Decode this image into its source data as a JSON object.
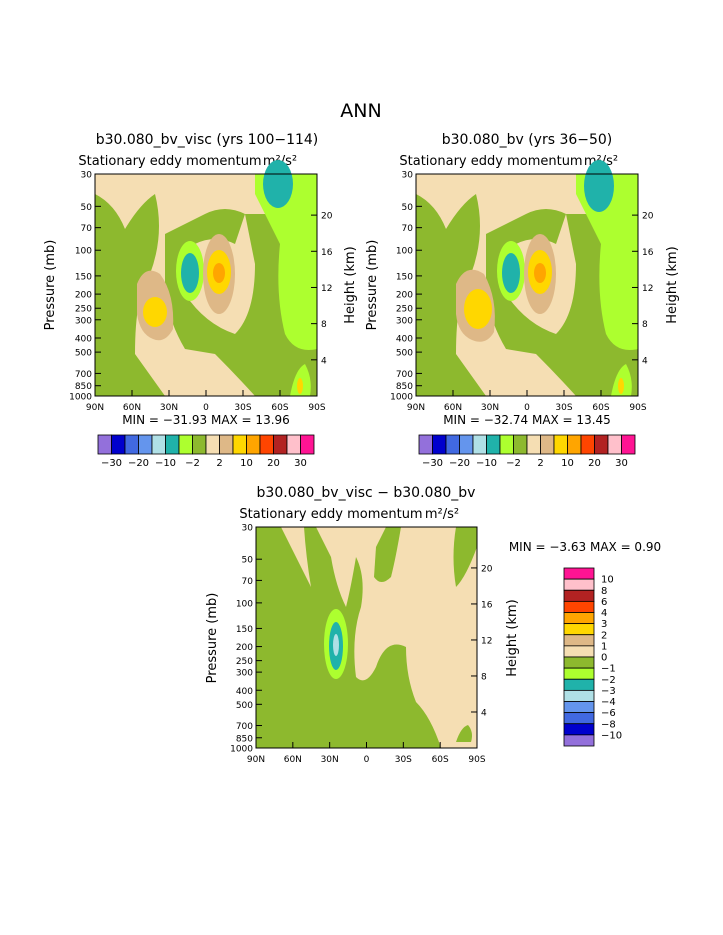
{
  "page_title": "ANN",
  "panels": [
    {
      "id": "p1",
      "title": "b30.080_bv_visc (yrs 100−114)",
      "subtitle": "Stationary eddy momentum",
      "units": "m²/s²",
      "stats": "MIN = −31.93   MAX =   13.96"
    },
    {
      "id": "p2",
      "title": "b30.080_bv (yrs 36−50)",
      "subtitle": "Stationary eddy momentum",
      "units": "m²/s²",
      "stats": "MIN = −32.74   MAX =   13.45"
    },
    {
      "id": "p3",
      "title": "b30.080_bv_visc − b30.080_bv",
      "subtitle": "Stationary eddy momentum",
      "units": "m²/s²",
      "stats": "MIN =   −3.63   MAX =    0.90"
    }
  ],
  "axes": {
    "ylabel_left": "Pressure (mb)",
    "ylabel_right": "Height (km)",
    "pressure_ticks": [
      "30",
      "50",
      "70",
      "100",
      "150",
      "200",
      "250",
      "300",
      "400",
      "500",
      "700",
      "850",
      "1000"
    ],
    "height_ticks": [
      "4",
      "8",
      "12",
      "16",
      "20"
    ],
    "lat_ticks": [
      "90N",
      "60N",
      "30N",
      "0",
      "30S",
      "60S",
      "90S"
    ]
  },
  "colorbar_top": {
    "colors": [
      "#9370db",
      "#0000cd",
      "#4169e1",
      "#6495ed",
      "#b0e0e6",
      "#20b2aa",
      "#adff2f",
      "#8db92e",
      "#f5deb3",
      "#deb887",
      "#ffd700",
      "#ffa500",
      "#ff4500",
      "#b22222",
      "#ffc0cb",
      "#ff1493"
    ],
    "labels": [
      "−30",
      "−20",
      "−10",
      "−2",
      "2",
      "10",
      "20",
      "30"
    ]
  },
  "colorbar_diff": {
    "colors": [
      "#ff1493",
      "#ffc0cb",
      "#b22222",
      "#ff4500",
      "#ffa500",
      "#ffd700",
      "#deb887",
      "#f5deb3",
      "#8db92e",
      "#adff2f",
      "#20b2aa",
      "#b0e0e6",
      "#6495ed",
      "#4169e1",
      "#0000cd",
      "#9370db"
    ],
    "labels": [
      "10",
      "8",
      "6",
      "4",
      "3",
      "2",
      "1",
      "0",
      "−1",
      "−2",
      "−3",
      "−4",
      "−6",
      "−8",
      "−10"
    ]
  },
  "chart_data": [
    {
      "type": "contour",
      "title": "b30.080_bv_visc (yrs 100−114)",
      "variable": "Stationary eddy momentum",
      "units": "m²/s²",
      "x": [
        "90N",
        "60N",
        "30N",
        "0",
        "30S",
        "60S",
        "90S"
      ],
      "y_pressure_mb": [
        30,
        50,
        70,
        100,
        150,
        200,
        250,
        300,
        400,
        500,
        700,
        850,
        1000
      ],
      "y_height_km": [
        4,
        8,
        12,
        16,
        20
      ],
      "contour_levels": [
        -30,
        -20,
        -10,
        -2,
        2,
        10,
        20,
        30
      ],
      "min": -31.93,
      "max": 13.96,
      "features": [
        "negative core near 12N at 150 mb",
        "positive core near 0-5S at 150 mb",
        "positive maximum near 30N 300 mb",
        "negative maximum near 60S 30 mb"
      ]
    },
    {
      "type": "contour",
      "title": "b30.080_bv (yrs 36−50)",
      "variable": "Stationary eddy momentum",
      "units": "m²/s²",
      "x": [
        "90N",
        "60N",
        "30N",
        "0",
        "30S",
        "60S",
        "90S"
      ],
      "y_pressure_mb": [
        30,
        50,
        70,
        100,
        150,
        200,
        250,
        300,
        400,
        500,
        700,
        850,
        1000
      ],
      "contour_levels": [
        -30,
        -20,
        -10,
        -2,
        2,
        10,
        20,
        30
      ],
      "min": -32.74,
      "max": 13.45
    },
    {
      "type": "contour",
      "title": "b30.080_bv_visc − b30.080_bv",
      "variable": "Stationary eddy momentum",
      "units": "m²/s²",
      "x": [
        "90N",
        "60N",
        "30N",
        "0",
        "30S",
        "60S",
        "90S"
      ],
      "y_pressure_mb": [
        30,
        50,
        70,
        100,
        150,
        200,
        250,
        300,
        400,
        500,
        700,
        850,
        1000
      ],
      "contour_levels": [
        -10,
        -8,
        -6,
        -4,
        -3,
        -2,
        -1,
        0,
        1,
        2,
        3,
        4,
        6,
        8,
        10
      ],
      "min": -3.63,
      "max": 0.9,
      "features": [
        "negative minimum near 25N at 200 mb"
      ]
    }
  ]
}
